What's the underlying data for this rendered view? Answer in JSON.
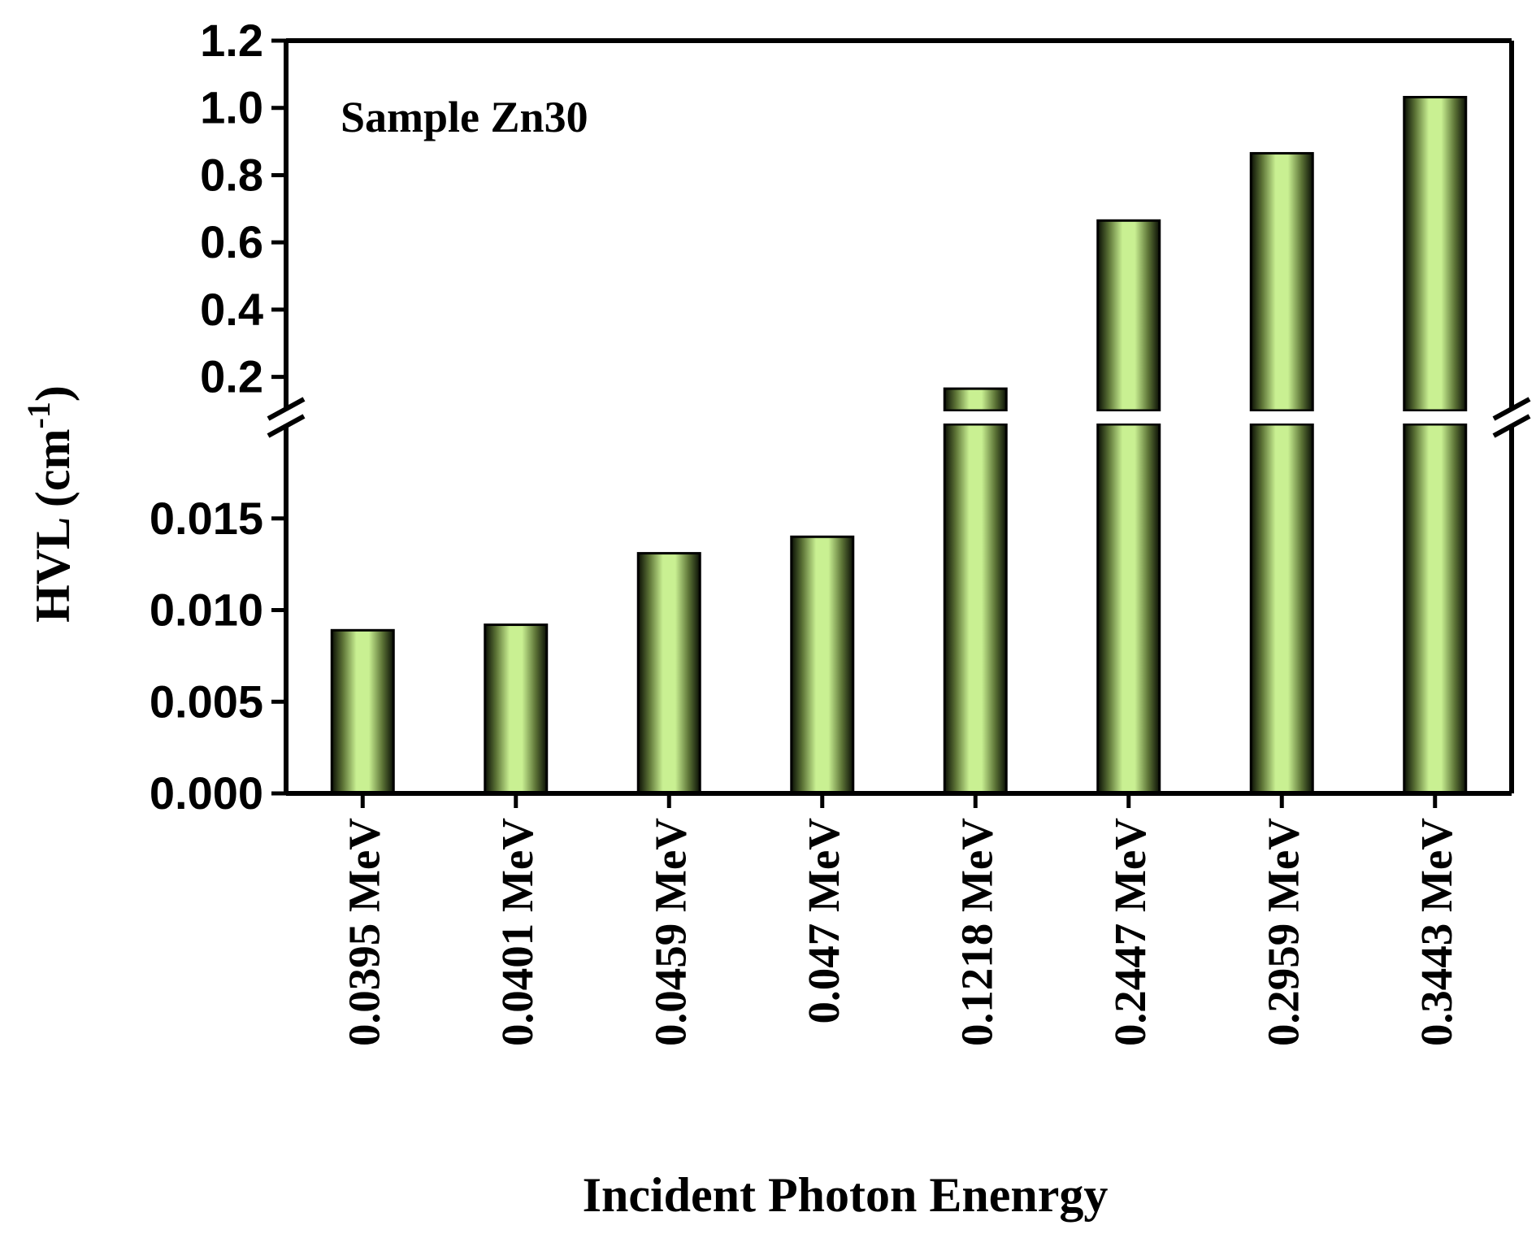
{
  "chart_data": {
    "type": "bar",
    "title": "",
    "annotation": "Sample Zn30",
    "xlabel": "Incident Photon Enenrgy",
    "ylabel_main": "HVL (cm",
    "ylabel_sup": "-1",
    "ylabel_close": ")",
    "categories": [
      "0.0395  MeV",
      "0.0401  MeV",
      "0.0459  MeV",
      "0.047  MeV",
      "0.1218  MeV",
      "0.2447  MeV",
      "0.2959  MeV",
      "0.3443  MeV"
    ],
    "values": [
      0.0089,
      0.0092,
      0.0131,
      0.014,
      0.165,
      0.665,
      0.865,
      1.032
    ],
    "y_axis_break": true,
    "segments": {
      "lower": {
        "ylim": [
          0,
          0.02
        ],
        "ticks": [
          "0.000",
          "0.005",
          "0.010",
          "0.015"
        ]
      },
      "upper": {
        "ylim": [
          0.1,
          1.2
        ],
        "ticks": [
          "0.2",
          "0.4",
          "0.6",
          "0.8",
          "1.0",
          "1.2"
        ]
      }
    },
    "grid": false,
    "legend": "none",
    "bar_color": "#c9f092",
    "bar_edge_color": "#000000"
  }
}
